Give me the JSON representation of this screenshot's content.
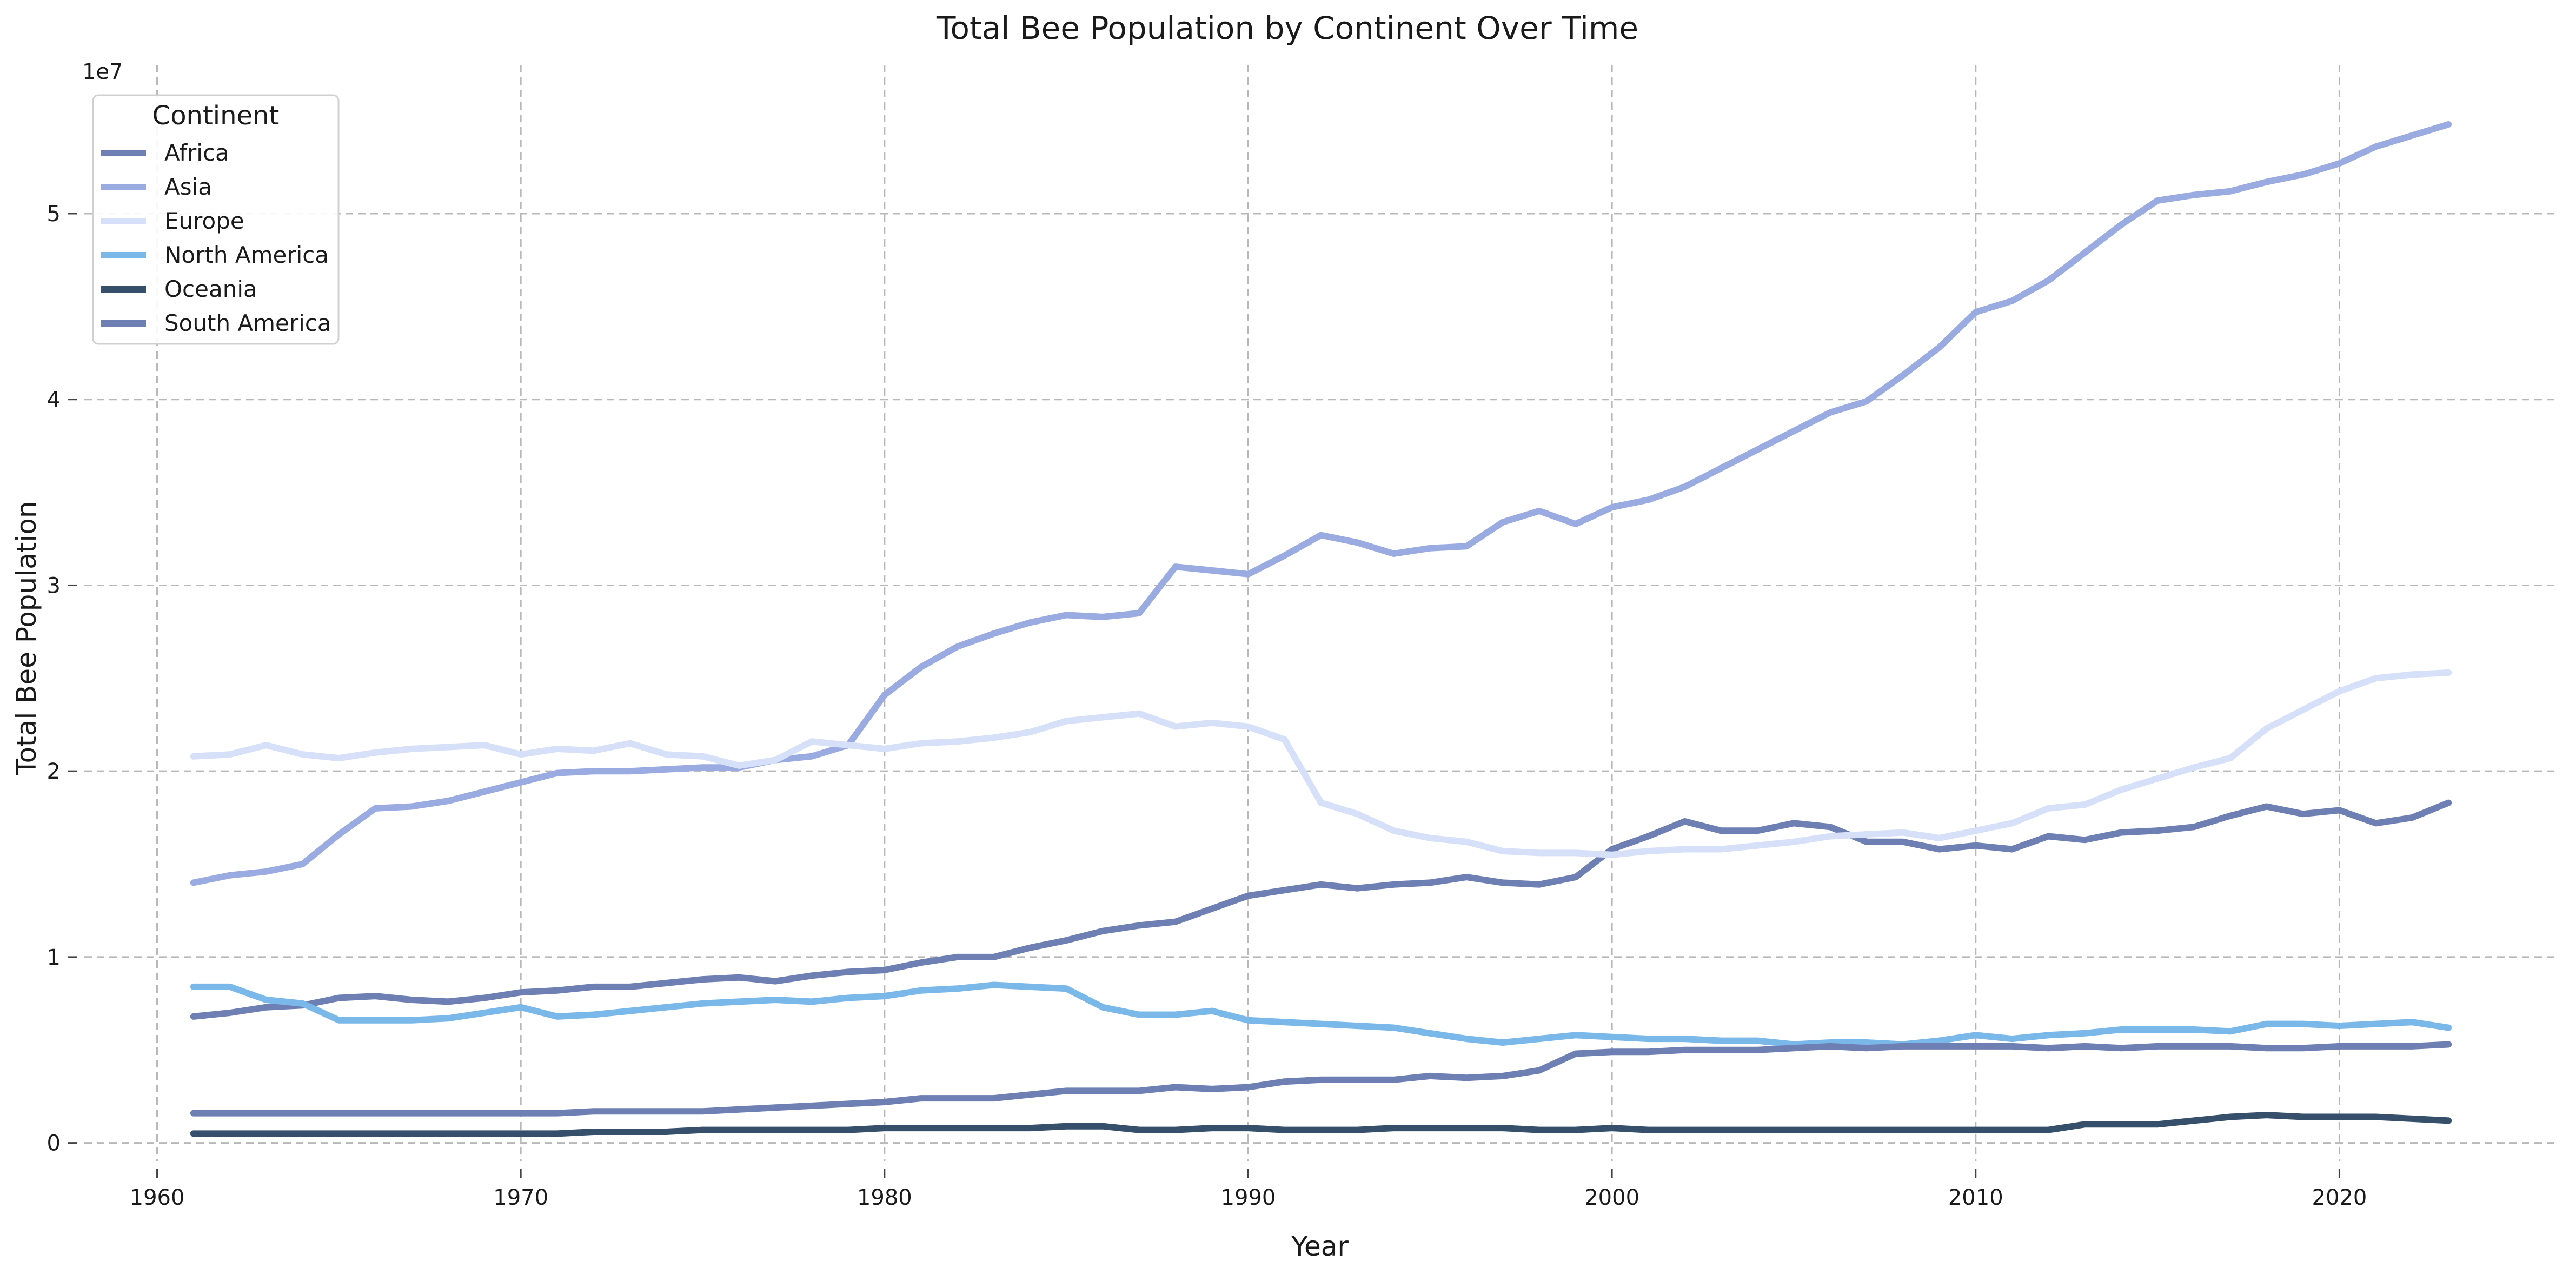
{
  "chart_data": {
    "type": "line",
    "title": "Total Bee Population by Continent Over Time",
    "xlabel": "Year",
    "ylabel": "Total Bee Population",
    "y_scale_label": "1e7",
    "y_multiplier": 10000000,
    "xlim": [
      1958,
      2026
    ],
    "ylim": [
      -0.1,
      5.8
    ],
    "x_ticks": [
      1960,
      1970,
      1980,
      1990,
      2000,
      2010,
      2020
    ],
    "x_tick_labels": [
      "1960",
      "1970",
      "1980",
      "1990",
      "2000",
      "2010",
      "2020"
    ],
    "y_ticks": [
      0,
      1,
      2,
      3,
      4,
      5
    ],
    "y_tick_labels": [
      "0",
      "1",
      "2",
      "3",
      "4",
      "5"
    ],
    "grid": true,
    "legend": {
      "title": "Continent",
      "position": "top-left"
    },
    "x": [
      1961,
      1962,
      1963,
      1964,
      1965,
      1966,
      1967,
      1968,
      1969,
      1970,
      1971,
      1972,
      1973,
      1974,
      1975,
      1976,
      1977,
      1978,
      1979,
      1980,
      1981,
      1982,
      1983,
      1984,
      1985,
      1986,
      1987,
      1988,
      1989,
      1990,
      1991,
      1992,
      1993,
      1994,
      1995,
      1996,
      1997,
      1998,
      1999,
      2000,
      2001,
      2002,
      2003,
      2004,
      2005,
      2006,
      2007,
      2008,
      2009,
      2010,
      2011,
      2012,
      2013,
      2014,
      2015,
      2016,
      2017,
      2018,
      2019,
      2020,
      2021,
      2022,
      2023
    ],
    "series": [
      {
        "name": "Africa",
        "color": "#6e80b3",
        "values": [
          0.68,
          0.7,
          0.73,
          0.74,
          0.78,
          0.79,
          0.77,
          0.76,
          0.78,
          0.81,
          0.82,
          0.84,
          0.84,
          0.86,
          0.88,
          0.89,
          0.87,
          0.9,
          0.92,
          0.93,
          0.97,
          1.0,
          1.0,
          1.05,
          1.09,
          1.14,
          1.17,
          1.19,
          1.26,
          1.33,
          1.36,
          1.39,
          1.37,
          1.39,
          1.4,
          1.43,
          1.4,
          1.39,
          1.43,
          1.58,
          1.65,
          1.73,
          1.68,
          1.68,
          1.72,
          1.7,
          1.62,
          1.62,
          1.58,
          1.6,
          1.58,
          1.65,
          1.63,
          1.67,
          1.68,
          1.7,
          1.76,
          1.81,
          1.77,
          1.79,
          1.72,
          1.75,
          1.83
        ]
      },
      {
        "name": "Asia",
        "color": "#9aabe2",
        "values": [
          1.4,
          1.44,
          1.46,
          1.5,
          1.66,
          1.8,
          1.81,
          1.84,
          1.89,
          1.94,
          1.99,
          2.0,
          2.0,
          2.01,
          2.02,
          2.02,
          2.06,
          2.08,
          2.14,
          2.41,
          2.56,
          2.67,
          2.74,
          2.8,
          2.84,
          2.83,
          2.85,
          3.1,
          3.08,
          3.06,
          3.16,
          3.27,
          3.23,
          3.17,
          3.2,
          3.21,
          3.34,
          3.4,
          3.33,
          3.42,
          3.46,
          3.53,
          3.63,
          3.73,
          3.83,
          3.93,
          3.99,
          4.13,
          4.28,
          4.47,
          4.53,
          4.64,
          4.79,
          4.94,
          5.07,
          5.1,
          5.12,
          5.17,
          5.21,
          5.27,
          5.36,
          5.42,
          5.48
        ]
      },
      {
        "name": "Europe",
        "color": "#d6e0f8",
        "values": [
          2.08,
          2.09,
          2.14,
          2.09,
          2.07,
          2.1,
          2.12,
          2.13,
          2.14,
          2.09,
          2.12,
          2.11,
          2.15,
          2.09,
          2.08,
          2.03,
          2.06,
          2.16,
          2.14,
          2.12,
          2.15,
          2.16,
          2.18,
          2.21,
          2.27,
          2.29,
          2.31,
          2.24,
          2.26,
          2.24,
          2.17,
          1.83,
          1.77,
          1.68,
          1.64,
          1.62,
          1.57,
          1.56,
          1.56,
          1.55,
          1.57,
          1.58,
          1.58,
          1.6,
          1.62,
          1.65,
          1.66,
          1.67,
          1.64,
          1.68,
          1.72,
          1.8,
          1.82,
          1.9,
          1.96,
          2.02,
          2.07,
          2.23,
          2.33,
          2.43,
          2.5,
          2.52,
          2.53
        ]
      },
      {
        "name": "North America",
        "color": "#7ab8ea",
        "values": [
          0.84,
          0.84,
          0.77,
          0.75,
          0.66,
          0.66,
          0.66,
          0.67,
          0.7,
          0.73,
          0.68,
          0.69,
          0.71,
          0.73,
          0.75,
          0.76,
          0.77,
          0.76,
          0.78,
          0.79,
          0.82,
          0.83,
          0.85,
          0.84,
          0.83,
          0.73,
          0.69,
          0.69,
          0.71,
          0.66,
          0.65,
          0.64,
          0.63,
          0.62,
          0.59,
          0.56,
          0.54,
          0.56,
          0.58,
          0.57,
          0.56,
          0.56,
          0.55,
          0.55,
          0.53,
          0.54,
          0.54,
          0.53,
          0.55,
          0.58,
          0.56,
          0.58,
          0.59,
          0.61,
          0.61,
          0.61,
          0.6,
          0.64,
          0.64,
          0.63,
          0.64,
          0.65,
          0.62
        ]
      },
      {
        "name": "Oceania",
        "color": "#36506b",
        "values": [
          0.05,
          0.05,
          0.05,
          0.05,
          0.05,
          0.05,
          0.05,
          0.05,
          0.05,
          0.05,
          0.05,
          0.06,
          0.06,
          0.06,
          0.07,
          0.07,
          0.07,
          0.07,
          0.07,
          0.08,
          0.08,
          0.08,
          0.08,
          0.08,
          0.09,
          0.09,
          0.07,
          0.07,
          0.08,
          0.08,
          0.07,
          0.07,
          0.07,
          0.08,
          0.08,
          0.08,
          0.08,
          0.07,
          0.07,
          0.08,
          0.07,
          0.07,
          0.07,
          0.07,
          0.07,
          0.07,
          0.07,
          0.07,
          0.07,
          0.07,
          0.07,
          0.07,
          0.1,
          0.1,
          0.1,
          0.12,
          0.14,
          0.15,
          0.14,
          0.14,
          0.14,
          0.13,
          0.12
        ]
      },
      {
        "name": "South America",
        "color": "#6e80b3",
        "values": [
          0.16,
          0.16,
          0.16,
          0.16,
          0.16,
          0.16,
          0.16,
          0.16,
          0.16,
          0.16,
          0.16,
          0.17,
          0.17,
          0.17,
          0.17,
          0.18,
          0.19,
          0.2,
          0.21,
          0.22,
          0.24,
          0.24,
          0.24,
          0.26,
          0.28,
          0.28,
          0.28,
          0.3,
          0.29,
          0.3,
          0.33,
          0.34,
          0.34,
          0.34,
          0.36,
          0.35,
          0.36,
          0.39,
          0.48,
          0.49,
          0.49,
          0.5,
          0.5,
          0.5,
          0.51,
          0.52,
          0.51,
          0.52,
          0.52,
          0.52,
          0.52,
          0.51,
          0.52,
          0.51,
          0.52,
          0.52,
          0.52,
          0.51,
          0.51,
          0.52,
          0.52,
          0.52,
          0.53
        ]
      }
    ]
  }
}
